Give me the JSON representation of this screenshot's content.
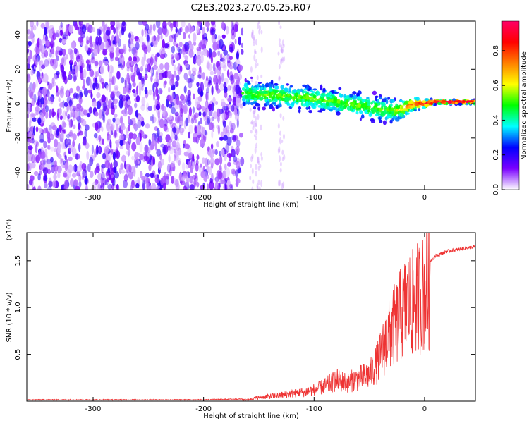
{
  "title": "C2E3.2023.270.05.25.R07",
  "chart_data": [
    {
      "type": "heatmap",
      "xlabel": "Height of straight line (km)",
      "ylabel": "Frequency (Hz)",
      "xlim": [
        -360,
        46
      ],
      "ylim": [
        -50,
        48
      ],
      "xticks": [
        -300,
        -200,
        -100,
        0
      ],
      "yticks": [
        -40,
        -20,
        0,
        20,
        40
      ],
      "colorbar": {
        "label": "Normalized spectral amplitude",
        "range": [
          0,
          0.97
        ],
        "ticks": [
          0.0,
          0.2,
          0.4,
          0.6,
          0.8
        ],
        "tick_labels": [
          "0.0",
          "0.2",
          "0.4",
          "0.6",
          "0.8"
        ],
        "colors": [
          "#ffffff",
          "#7a00ff",
          "#0000ff",
          "#00ffff",
          "#00ff00",
          "#ffff00",
          "#ff8000",
          "#ff0000",
          "#ff0066"
        ]
      },
      "signal_ridge": {
        "x": [
          -165,
          -140,
          -120,
          -100,
          -80,
          -60,
          -40,
          -30,
          -20,
          -10,
          0,
          10,
          20,
          30,
          46
        ],
        "y": [
          6,
          5,
          4,
          3,
          1,
          -1,
          -3,
          -4,
          -3,
          0,
          0,
          1,
          1,
          1,
          1
        ]
      },
      "noise_extent_x": [
        -360,
        -165
      ]
    },
    {
      "type": "line",
      "xlabel": "Height of straight line (km)",
      "ylabel": "SNR (10 * v/v)",
      "y_multiplier": "(x10⁴)",
      "xlim": [
        -360,
        46
      ],
      "ylim": [
        0,
        1.8
      ],
      "xticks": [
        -300,
        -200,
        -100,
        0
      ],
      "yticks": [
        0.5,
        1.0,
        1.5
      ],
      "ytick_labels": [
        "0.5",
        "1.0",
        "1.5"
      ],
      "color": "#ee3333",
      "series": [
        {
          "x": [
            -360,
            -200,
            -160,
            -150,
            -130,
            -110,
            -100,
            -90,
            -80,
            -70,
            -60,
            -50,
            -45,
            -40,
            -35,
            -30,
            -25,
            -20,
            -15,
            -10,
            -5,
            0,
            5,
            10,
            20,
            30,
            40,
            46
          ],
          "y": [
            0.01,
            0.01,
            0.02,
            0.05,
            0.08,
            0.12,
            0.15,
            0.2,
            0.28,
            0.25,
            0.3,
            0.35,
            0.45,
            0.6,
            0.8,
            0.95,
            1.05,
            1.2,
            1.3,
            1.3,
            1.4,
            1.45,
            1.5,
            1.55,
            1.6,
            1.62,
            1.64,
            1.65
          ]
        }
      ]
    }
  ]
}
